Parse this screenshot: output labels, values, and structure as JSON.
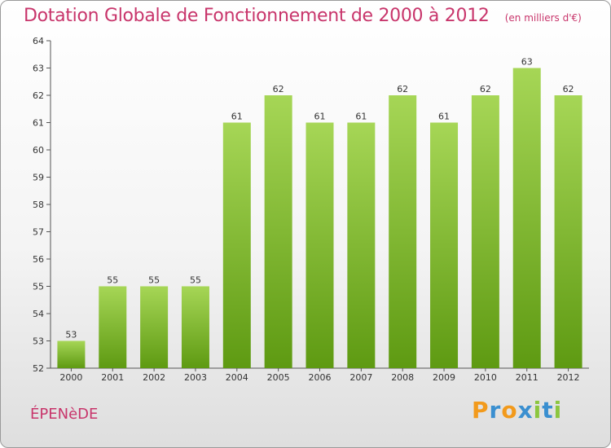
{
  "header": {
    "title": "Dotation Globale de Fonctionnement de 2000 à 2012",
    "unit": "(en milliers d'€)"
  },
  "footer": {
    "commune": "ÉPENèDE",
    "logo": "Proxiti"
  },
  "colors": {
    "title": "#c8356b",
    "bar_light": "#a6d656",
    "bar_dark": "#5e9a12",
    "logo_letters": [
      "#f29a1c",
      "#3a8fd0",
      "#f29a1c",
      "#3a8fd0",
      "#8cc63f",
      "#3a8fd0",
      "#8cc63f"
    ]
  },
  "chart_data": {
    "type": "bar",
    "title": "Dotation Globale de Fonctionnement de 2000 à 2012",
    "subtitle": "(en milliers d'€)",
    "categories": [
      "2000",
      "2001",
      "2002",
      "2003",
      "2004",
      "2005",
      "2006",
      "2007",
      "2008",
      "2009",
      "2010",
      "2011",
      "2012"
    ],
    "values": [
      53,
      55,
      55,
      55,
      61,
      62,
      61,
      61,
      62,
      61,
      62,
      63,
      62
    ],
    "ylim": [
      52,
      64
    ],
    "yticks": [
      52,
      53,
      54,
      55,
      56,
      57,
      58,
      59,
      60,
      61,
      62,
      63,
      64
    ],
    "grid": false,
    "data_labels": true
  }
}
